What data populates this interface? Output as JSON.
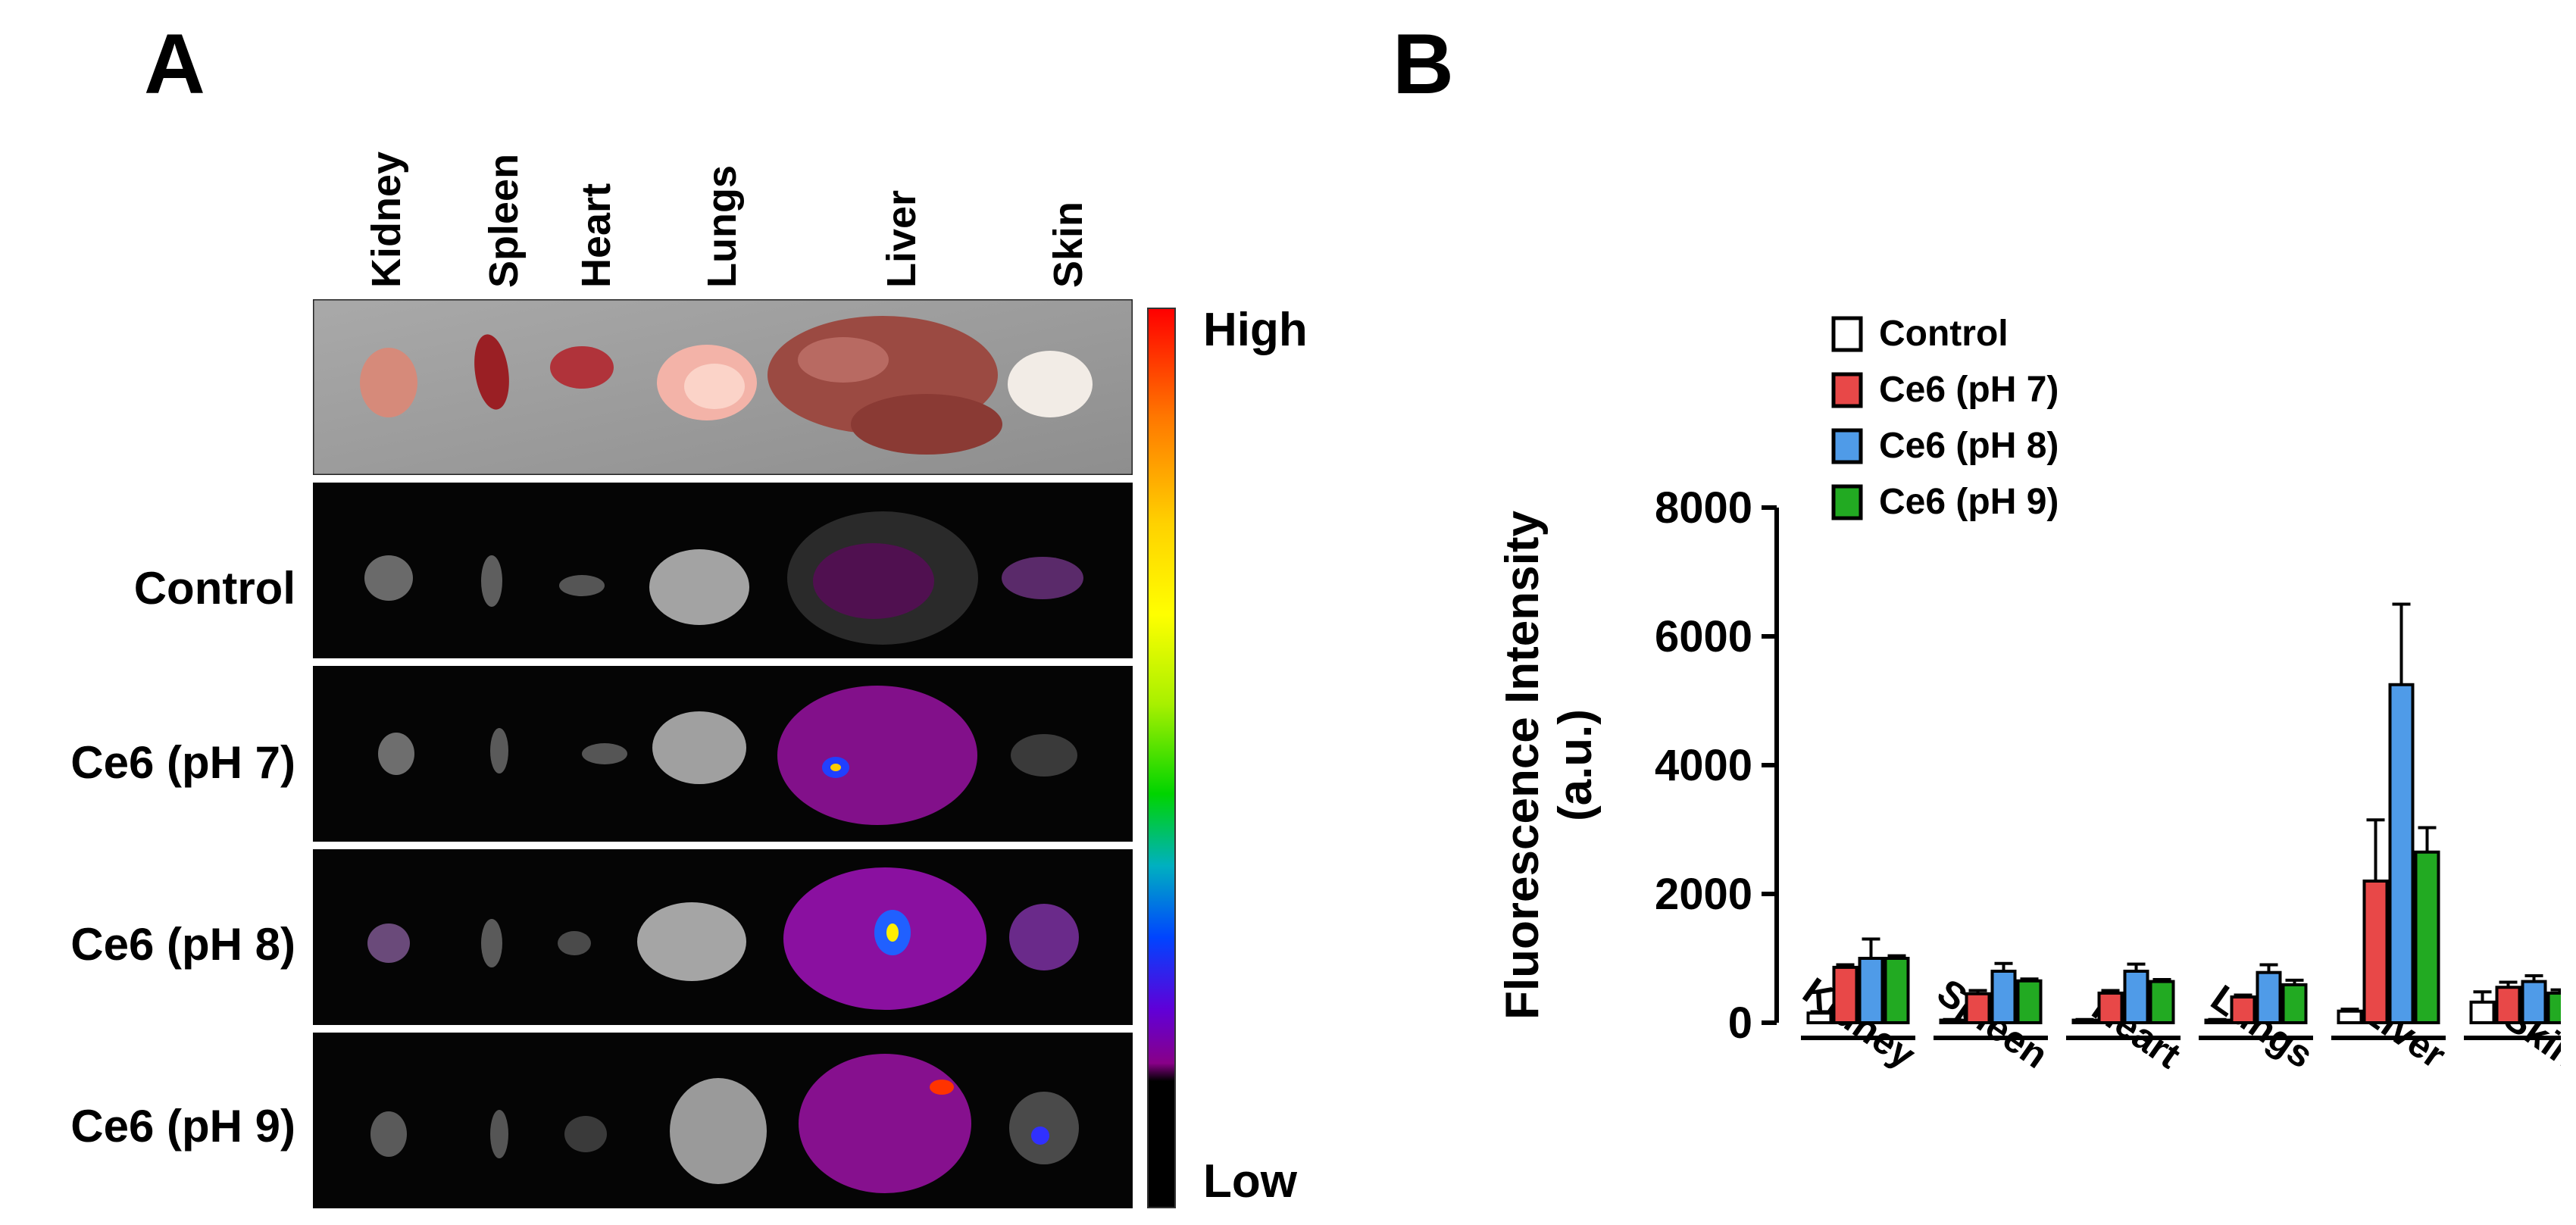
{
  "panel_a": {
    "label": "A",
    "organs": [
      "Kidney",
      "Spleen",
      "Heart",
      "Lungs",
      "Liver",
      "Skin"
    ],
    "rows": [
      "Control",
      "Ce6 (pH 7)",
      "Ce6 (pH 8)",
      "Ce6 (pH 9)"
    ],
    "colorbar": {
      "high": "High",
      "low": "Low"
    }
  },
  "panel_b": {
    "label": "B"
  },
  "chart_data": {
    "type": "bar",
    "categories": [
      "Kidney",
      "Spleen",
      "Heart",
      "Lungs",
      "Liver",
      "Skin"
    ],
    "series": [
      {
        "name": "Control",
        "color": "#ffffff",
        "values": [
          150,
          40,
          40,
          40,
          180,
          320
        ],
        "errors": [
          20,
          10,
          10,
          10,
          30,
          160
        ]
      },
      {
        "name": "Ce6 (pH 7)",
        "color": "#e84848",
        "values": [
          860,
          450,
          460,
          400,
          2200,
          550
        ],
        "errors": [
          40,
          50,
          40,
          30,
          950,
          80
        ]
      },
      {
        "name": "Ce6 (pH 8)",
        "color": "#4f9be8",
        "values": [
          1000,
          800,
          800,
          780,
          5250,
          640
        ],
        "errors": [
          300,
          120,
          110,
          120,
          1250,
          90
        ]
      },
      {
        "name": "Ce6 (pH 9)",
        "color": "#22aa22",
        "values": [
          1000,
          650,
          640,
          590,
          2650,
          460
        ],
        "errors": [
          40,
          30,
          30,
          70,
          380,
          50
        ]
      }
    ],
    "ylabel": "Fluorescence Intensity\n(a.u.)",
    "ylim": [
      0,
      8000
    ],
    "yticks": [
      0,
      2000,
      4000,
      6000,
      8000
    ],
    "grid": false,
    "legend_position": "top-left"
  }
}
